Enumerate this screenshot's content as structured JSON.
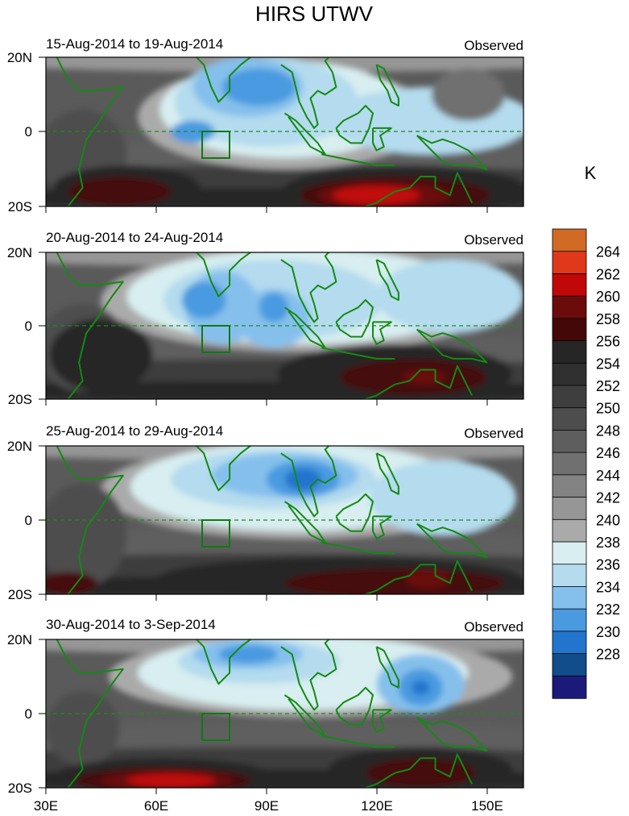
{
  "chart_data": {
    "type": "heatmap",
    "title": "HIRS UTWV",
    "units_label": "K",
    "x_ticks": [
      "30E",
      "60E",
      "90E",
      "120E",
      "150E"
    ],
    "x_range": [
      30,
      160
    ],
    "y_ticks": [
      "20N",
      "0",
      "20S"
    ],
    "y_range": [
      -20,
      20
    ],
    "colorbar_levels": [
      228,
      230,
      232,
      234,
      236,
      238,
      240,
      242,
      244,
      246,
      248,
      250,
      252,
      254,
      256,
      258,
      260,
      262,
      264
    ],
    "colorbar_labels": [
      "264",
      "262",
      "260",
      "258",
      "256",
      "254",
      "252",
      "250",
      "248",
      "246",
      "244",
      "242",
      "240",
      "238",
      "236",
      "234",
      "232",
      "230",
      "228"
    ],
    "colorbar_colors": [
      "#1b1a7a",
      "#114c8b",
      "#2275cc",
      "#4a9ae0",
      "#85c0ec",
      "#b4dbee",
      "#d8eef0",
      "#aaaaaa",
      "#969696",
      "#838383",
      "#707070",
      "#5e5e5e",
      "#4d4d4d",
      "#3e3e3e",
      "#303030",
      "#262626",
      "#440808",
      "#6b0b0b",
      "#c00808",
      "#e0381a",
      "#d06a24"
    ],
    "panels": [
      {
        "period": "15-Aug-2014 to 19-Aug-2014",
        "label": "Observed",
        "features": [
          {
            "shape": "blob",
            "level": 240,
            "lon": 95,
            "lat": 4,
            "rlon": 40,
            "rlat": 14
          },
          {
            "shape": "blob",
            "level": 238,
            "lon": 95,
            "lat": 6,
            "rlon": 34,
            "rlat": 13
          },
          {
            "shape": "blob",
            "level": 236,
            "lon": 90,
            "lat": 8,
            "rlon": 25,
            "rlat": 12
          },
          {
            "shape": "blob",
            "level": 234,
            "lon": 85,
            "lat": 12,
            "rlon": 15,
            "rlat": 8
          },
          {
            "shape": "blob",
            "level": 232,
            "lon": 88,
            "lat": 12,
            "rlon": 10,
            "rlat": 5
          },
          {
            "shape": "blob",
            "level": 232,
            "lon": 70,
            "lat": 0,
            "rlon": 6,
            "rlat": 3
          },
          {
            "shape": "blob",
            "level": 236,
            "lon": 135,
            "lat": 3,
            "rlon": 28,
            "rlat": 9
          },
          {
            "shape": "blob",
            "level": 246,
            "lon": 145,
            "lat": 10,
            "rlon": 10,
            "rlat": 7
          },
          {
            "shape": "blob",
            "level": 250,
            "lon": 40,
            "lat": -6,
            "rlon": 12,
            "rlat": 12
          },
          {
            "shape": "blob",
            "level": 256,
            "lon": 128,
            "lat": -16,
            "rlon": 34,
            "rlat": 7
          },
          {
            "shape": "blob",
            "level": 258,
            "lon": 125,
            "lat": -17,
            "rlon": 26,
            "rlat": 5
          },
          {
            "shape": "blob",
            "level": 260,
            "lon": 122,
            "lat": -17,
            "rlon": 18,
            "rlat": 3.5
          },
          {
            "shape": "blob",
            "level": 262,
            "lon": 120,
            "lat": -17,
            "rlon": 12,
            "rlat": 2.5
          },
          {
            "shape": "blob",
            "level": 256,
            "lon": 52,
            "lat": -15,
            "rlon": 20,
            "rlat": 6
          },
          {
            "shape": "blob",
            "level": 258,
            "lon": 50,
            "lat": -16,
            "rlon": 14,
            "rlat": 4
          }
        ]
      },
      {
        "period": "20-Aug-2014 to 24-Aug-2014",
        "label": "Observed",
        "features": [
          {
            "shape": "blob",
            "level": 240,
            "lon": 100,
            "lat": 7,
            "rlon": 55,
            "rlat": 14
          },
          {
            "shape": "blob",
            "level": 238,
            "lon": 100,
            "lat": 8,
            "rlon": 48,
            "rlat": 13
          },
          {
            "shape": "blob",
            "level": 236,
            "lon": 92,
            "lat": 7,
            "rlon": 30,
            "rlat": 11
          },
          {
            "shape": "blob",
            "level": 234,
            "lon": 78,
            "lat": 5,
            "rlon": 10,
            "rlat": 10
          },
          {
            "shape": "blob",
            "level": 232,
            "lon": 73,
            "lat": 7,
            "rlon": 6,
            "rlat": 5
          },
          {
            "shape": "blob",
            "level": 234,
            "lon": 92,
            "lat": 2,
            "rlon": 10,
            "rlat": 8
          },
          {
            "shape": "blob",
            "level": 232,
            "lon": 92,
            "lat": 5,
            "rlon": 4,
            "rlat": 4
          },
          {
            "shape": "blob",
            "level": 236,
            "lon": 140,
            "lat": 8,
            "rlon": 20,
            "rlat": 10
          },
          {
            "shape": "blob",
            "level": 250,
            "lon": 40,
            "lat": -6,
            "rlon": 12,
            "rlat": 12
          },
          {
            "shape": "blob",
            "level": 256,
            "lon": 125,
            "lat": -13,
            "rlon": 32,
            "rlat": 8
          },
          {
            "shape": "blob",
            "level": 258,
            "lon": 130,
            "lat": -14,
            "rlon": 20,
            "rlat": 5
          },
          {
            "shape": "blob",
            "level": 260,
            "lon": 133,
            "lat": -14,
            "rlon": 6,
            "rlat": 2
          },
          {
            "shape": "blob",
            "level": 256,
            "lon": 45,
            "lat": -8,
            "rlon": 14,
            "rlat": 10
          }
        ]
      },
      {
        "period": "25-Aug-2014 to 29-Aug-2014",
        "label": "Observed",
        "features": [
          {
            "shape": "blob",
            "level": 240,
            "lon": 100,
            "lat": 8,
            "rlon": 55,
            "rlat": 13
          },
          {
            "shape": "blob",
            "level": 238,
            "lon": 98,
            "lat": 9,
            "rlon": 45,
            "rlat": 12
          },
          {
            "shape": "blob",
            "level": 236,
            "lon": 92,
            "lat": 11,
            "rlon": 28,
            "rlat": 8
          },
          {
            "shape": "blob",
            "level": 234,
            "lon": 95,
            "lat": 12,
            "rlon": 20,
            "rlat": 6
          },
          {
            "shape": "blob",
            "level": 232,
            "lon": 100,
            "lat": 11,
            "rlon": 10,
            "rlat": 5
          },
          {
            "shape": "blob",
            "level": 230,
            "lon": 100,
            "lat": 11,
            "rlon": 5,
            "rlat": 3
          },
          {
            "shape": "blob",
            "level": 236,
            "lon": 138,
            "lat": 6,
            "rlon": 20,
            "rlat": 10
          },
          {
            "shape": "blob",
            "level": 250,
            "lon": 40,
            "lat": -4,
            "rlon": 12,
            "rlat": 14
          },
          {
            "shape": "blob",
            "level": 256,
            "lon": 110,
            "lat": -16,
            "rlon": 50,
            "rlat": 6
          },
          {
            "shape": "blob",
            "level": 258,
            "lon": 125,
            "lat": -17,
            "rlon": 30,
            "rlat": 4
          },
          {
            "shape": "blob",
            "level": 260,
            "lon": 134,
            "lat": -16,
            "rlon": 6,
            "rlat": 2.5
          },
          {
            "shape": "blob",
            "level": 258,
            "lon": 36,
            "lat": -17,
            "rlon": 8,
            "rlat": 3
          }
        ]
      },
      {
        "period": "30-Aug-2014 to 3-Sep-2014",
        "label": "Observed",
        "features": [
          {
            "shape": "blob",
            "level": 240,
            "lon": 102,
            "lat": 10,
            "rlon": 55,
            "rlat": 11
          },
          {
            "shape": "blob",
            "level": 238,
            "lon": 100,
            "lat": 11,
            "rlon": 45,
            "rlat": 10
          },
          {
            "shape": "blob",
            "level": 236,
            "lon": 88,
            "lat": 14,
            "rlon": 22,
            "rlat": 6
          },
          {
            "shape": "blob",
            "level": 234,
            "lon": 85,
            "lat": 16,
            "rlon": 15,
            "rlat": 4
          },
          {
            "shape": "blob",
            "level": 232,
            "lon": 85,
            "lat": 16,
            "rlon": 8,
            "rlat": 2.5
          },
          {
            "shape": "blob",
            "level": 234,
            "lon": 132,
            "lat": 8,
            "rlon": 12,
            "rlat": 8
          },
          {
            "shape": "blob",
            "level": 232,
            "lon": 132,
            "lat": 7,
            "rlon": 6,
            "rlat": 5
          },
          {
            "shape": "blob",
            "level": 230,
            "lon": 132,
            "lat": 7,
            "rlon": 2.5,
            "rlat": 2
          },
          {
            "shape": "blob",
            "level": 250,
            "lon": 40,
            "lat": -4,
            "rlon": 10,
            "rlat": 10
          },
          {
            "shape": "blob",
            "level": 256,
            "lon": 62,
            "lat": -17,
            "rlon": 30,
            "rlat": 5
          },
          {
            "shape": "blob",
            "level": 258,
            "lon": 62,
            "lat": -18,
            "rlon": 24,
            "rlat": 3.5
          },
          {
            "shape": "blob",
            "level": 260,
            "lon": 63,
            "lat": -18,
            "rlon": 18,
            "rlat": 2.5
          },
          {
            "shape": "blob",
            "level": 262,
            "lon": 64,
            "lat": -18,
            "rlon": 12,
            "rlat": 1.8
          },
          {
            "shape": "blob",
            "level": 256,
            "lon": 132,
            "lat": -15,
            "rlon": 25,
            "rlat": 6
          },
          {
            "shape": "blob",
            "level": 258,
            "lon": 132,
            "lat": -16,
            "rlon": 15,
            "rlat": 4
          }
        ]
      }
    ]
  }
}
